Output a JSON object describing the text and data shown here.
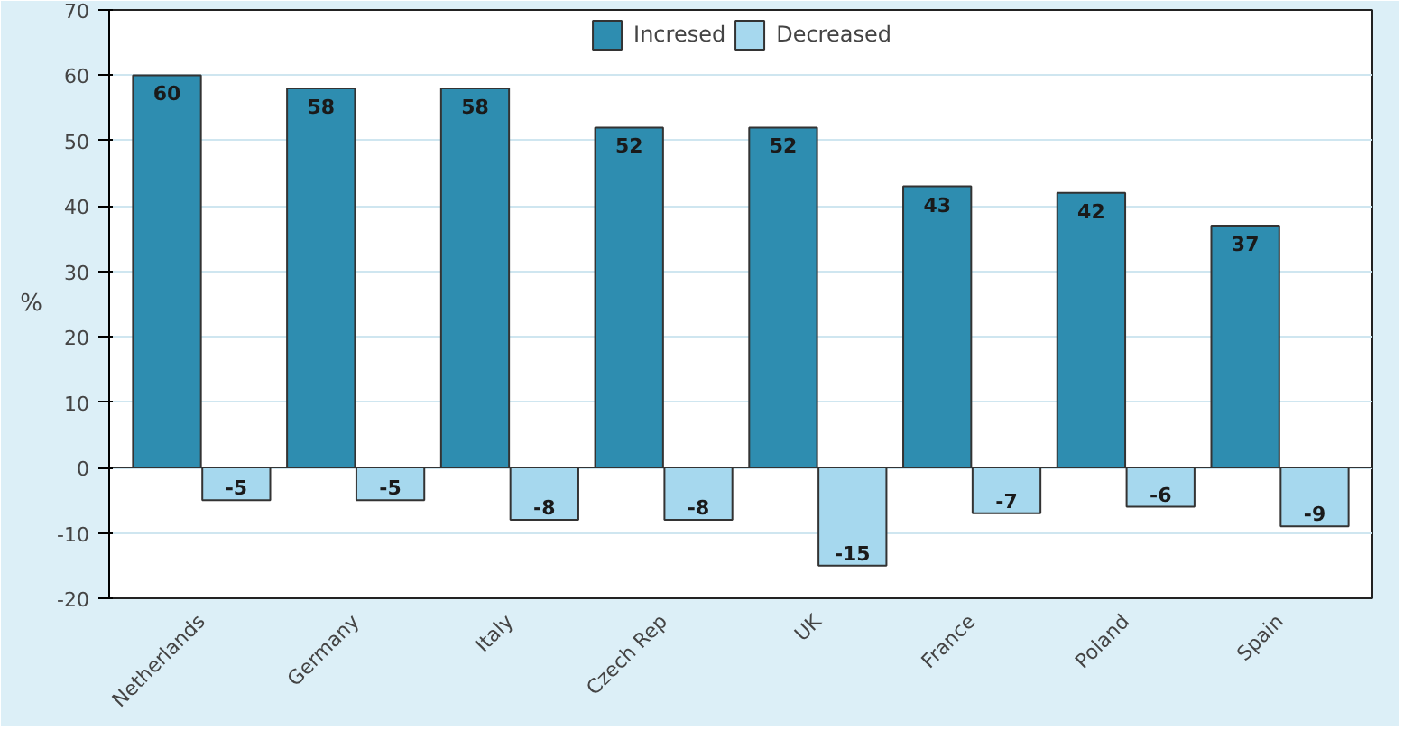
{
  "chart_data": {
    "type": "bar",
    "ylabel": "%",
    "categories": [
      "Netherlands",
      "Germany",
      "Italy",
      "Czech Rep",
      "UK",
      "France",
      "Poland",
      "Spain"
    ],
    "series": [
      {
        "name": "Incresed",
        "color": "#2e8db0",
        "values": [
          60,
          58,
          58,
          52,
          52,
          43,
          42,
          37
        ]
      },
      {
        "name": "Decreased",
        "color": "#a6d8ee",
        "values": [
          -5,
          -5,
          -8,
          -8,
          -15,
          -7,
          -6,
          -9
        ]
      }
    ],
    "ylim": [
      -20,
      70
    ],
    "yticks": [
      -20,
      -10,
      0,
      10,
      20,
      30,
      40,
      50,
      60,
      70
    ],
    "grid": "y",
    "legend": "top",
    "data_labels": true
  }
}
